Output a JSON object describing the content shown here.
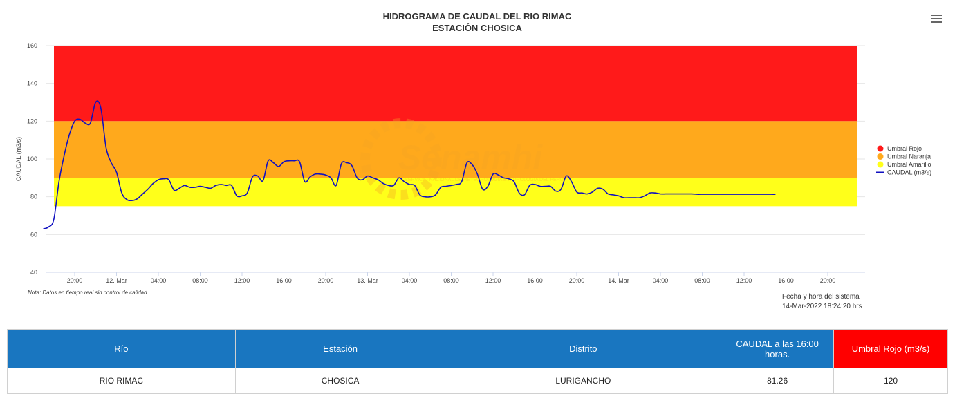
{
  "chart_data": {
    "type": "line",
    "title": "HIDROGRAMA DE CAUDAL DEL RIO RIMAC",
    "subtitle": "ESTACIÓN CHOSICA",
    "xlabel": "",
    "ylabel": "CAUDAL (m3/s)",
    "ylim": [
      40,
      160
    ],
    "yticks": [
      40,
      60,
      80,
      100,
      120,
      140,
      160
    ],
    "xlim": [
      16,
      87
    ],
    "x_unit": "hours from 11-Mar 00:00",
    "xticks": [
      {
        "x": 20,
        "label": "20:00"
      },
      {
        "x": 24,
        "label": "12. Mar"
      },
      {
        "x": 28,
        "label": "04:00"
      },
      {
        "x": 32,
        "label": "08:00"
      },
      {
        "x": 36,
        "label": "12:00"
      },
      {
        "x": 40,
        "label": "16:00"
      },
      {
        "x": 44,
        "label": "20:00"
      },
      {
        "x": 48,
        "label": "13. Mar"
      },
      {
        "x": 52,
        "label": "04:00"
      },
      {
        "x": 56,
        "label": "08:00"
      },
      {
        "x": 60,
        "label": "12:00"
      },
      {
        "x": 64,
        "label": "16:00"
      },
      {
        "x": 68,
        "label": "20:00"
      },
      {
        "x": 72,
        "label": "14. Mar"
      },
      {
        "x": 76,
        "label": "04:00"
      },
      {
        "x": 80,
        "label": "08:00"
      },
      {
        "x": 84,
        "label": "12:00"
      },
      {
        "x": 88,
        "label": "16:00"
      },
      {
        "x": 92,
        "label": "20:00"
      }
    ],
    "bands": [
      {
        "name": "Umbral Rojo",
        "from": 120,
        "to": 160,
        "color": "#ff1a1a"
      },
      {
        "name": "Umbral Naranja",
        "from": 90,
        "to": 120,
        "color": "#ffa91c"
      },
      {
        "name": "Umbral Amarillo",
        "from": 75,
        "to": 90,
        "color": "#ffff1a"
      }
    ],
    "series": [
      {
        "name": "CAUDAL (m3/s)",
        "color": "#1010c0",
        "x": [
          17.0,
          17.5,
          18.0,
          18.5,
          19.0,
          19.5,
          20.0,
          20.5,
          21.0,
          21.5,
          22.0,
          22.5,
          23.0,
          23.5,
          24.0,
          24.5,
          25.0,
          25.5,
          26.0,
          26.5,
          27.0,
          27.5,
          28.0,
          28.5,
          29.0,
          29.5,
          30.0,
          30.5,
          31.0,
          31.5,
          32.0,
          32.5,
          33.0,
          33.5,
          34.0,
          34.5,
          35.0,
          35.5,
          36.0,
          36.5,
          37.0,
          37.5,
          38.0,
          38.5,
          39.0,
          39.5,
          40.0,
          40.5,
          41.0,
          41.5,
          42.0,
          42.5,
          43.0,
          43.5,
          44.0,
          44.5,
          45.0,
          45.5,
          46.0,
          46.5,
          47.0,
          47.5,
          48.0,
          48.5,
          49.0,
          49.5,
          50.0,
          50.5,
          51.0,
          51.5,
          52.0,
          52.5,
          53.0,
          53.5,
          54.0,
          54.5,
          55.0,
          55.5,
          56.0,
          56.5,
          57.0,
          57.5,
          58.0,
          58.5,
          59.0,
          59.5,
          60.0,
          60.5,
          61.0,
          61.5,
          62.0,
          62.5,
          63.0,
          63.5,
          64.0,
          64.5,
          65.0,
          65.5,
          66.0,
          66.5,
          67.0,
          67.5,
          68.0,
          68.5,
          69.0,
          69.5,
          70.0,
          70.5,
          71.0,
          71.5,
          72.0,
          72.5,
          73.0,
          73.5,
          74.0,
          74.5,
          75.0,
          75.5,
          76.0,
          76.5,
          77.0,
          77.5,
          78.0,
          78.5,
          79.0,
          79.5,
          80.0,
          80.5,
          81.0,
          81.5,
          82.0,
          82.5,
          83.0,
          83.5,
          84.0,
          84.5,
          85.0,
          85.5,
          86.0,
          86.5,
          87.0
        ],
        "y": [
          63.0,
          64.0,
          68.0,
          88.0,
          102.0,
          113.0,
          120.0,
          121.0,
          119.0,
          119.0,
          130.0,
          127.0,
          106.0,
          98.0,
          93.0,
          82.0,
          78.5,
          78.0,
          79.0,
          81.5,
          84.0,
          87.0,
          89.0,
          89.5,
          89.0,
          83.5,
          84.5,
          86.0,
          85.0,
          85.0,
          85.5,
          85.0,
          84.5,
          86.0,
          86.5,
          86.0,
          86.0,
          80.5,
          80.5,
          82.0,
          90.5,
          91.0,
          88.5,
          99.0,
          98.0,
          96.0,
          98.5,
          99.0,
          99.0,
          98.5,
          88.0,
          90.5,
          92.0,
          92.0,
          91.5,
          90.0,
          86.0,
          97.5,
          98.0,
          96.5,
          90.0,
          89.0,
          91.0,
          90.0,
          89.0,
          87.0,
          86.0,
          86.0,
          90.0,
          88.0,
          86.5,
          86.0,
          81.0,
          80.0,
          80.0,
          81.0,
          85.0,
          85.5,
          86.0,
          86.5,
          88.0,
          98.0,
          97.0,
          92.0,
          84.0,
          85.5,
          92.0,
          91.5,
          90.0,
          89.5,
          88.0,
          82.0,
          81.0,
          86.0,
          86.5,
          85.5,
          85.5,
          85.5,
          83.0,
          84.0,
          91.0,
          88.0,
          82.5,
          82.0,
          81.5,
          82.5,
          84.5,
          84.0,
          81.5,
          81.0,
          80.5,
          79.5,
          79.5,
          79.5,
          79.5,
          80.5,
          82.0,
          82.0,
          81.5,
          81.5,
          81.5,
          81.5,
          81.5,
          81.5,
          81.5,
          81.3,
          81.3,
          81.3,
          81.3,
          81.3,
          81.3,
          81.3,
          81.3,
          81.3,
          81.3,
          81.3,
          81.3,
          81.3,
          81.3,
          81.3,
          81.26
        ]
      }
    ],
    "legend": {
      "position": "right"
    },
    "grid": true
  },
  "watermark": {
    "text": "Senamhi",
    "sub": "SERVICIO NACIONAL DE METEOROLOGÍA E HIDROLOGÍA DEL PERÚ",
    "color": "#f5a623"
  },
  "note": "Nota: Datos en tiempo real sin control de calidad",
  "system_time": {
    "label": "Fecha y hora del sistema",
    "value": "14-Mar-2022 18:24:20 hrs"
  },
  "table": {
    "headers": {
      "rio": "Río",
      "estacion": "Estación",
      "distrito": "Distrito",
      "caudal": "CAUDAL a las 16:00 horas.",
      "umbral": "Umbral Rojo (m3/s)"
    },
    "row": {
      "rio": "RIO RIMAC",
      "estacion": "CHOSICA",
      "distrito": "LURIGANCHO",
      "caudal": "81.26",
      "umbral": "120"
    }
  }
}
